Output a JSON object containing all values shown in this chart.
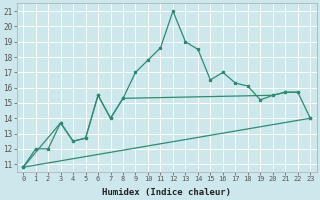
{
  "main_x": [
    0,
    1,
    2,
    3,
    4,
    5,
    6,
    7,
    8,
    9,
    10,
    11,
    12,
    13,
    14,
    15,
    16,
    17,
    18,
    19,
    20,
    21,
    22
  ],
  "main_y": [
    10.8,
    12.0,
    12.0,
    13.7,
    12.5,
    12.7,
    15.5,
    14.0,
    15.3,
    17.0,
    17.8,
    18.6,
    21.0,
    19.0,
    18.5,
    16.5,
    17.0,
    16.3,
    16.1,
    15.2,
    15.5,
    15.7,
    15.7
  ],
  "line2_x": [
    0,
    3,
    4,
    5,
    6,
    7,
    8,
    20,
    21,
    22,
    23
  ],
  "line2_y": [
    10.8,
    13.7,
    12.5,
    12.7,
    15.5,
    14.0,
    15.3,
    15.5,
    15.7,
    15.7,
    14.0
  ],
  "line3_x": [
    0,
    23
  ],
  "line3_y": [
    10.8,
    14.0
  ],
  "line_color": "#2e8b72",
  "bg_color": "#cde8ec",
  "grid_color": "#b0d4d8",
  "xlabel": "Humidex (Indice chaleur)",
  "yticks": [
    11,
    12,
    13,
    14,
    15,
    16,
    17,
    18,
    19,
    20,
    21
  ],
  "xticks": [
    0,
    1,
    2,
    3,
    4,
    5,
    6,
    7,
    8,
    9,
    10,
    11,
    12,
    13,
    14,
    15,
    16,
    17,
    18,
    19,
    20,
    21,
    22,
    23
  ],
  "xlim": [
    -0.5,
    23.5
  ],
  "ylim": [
    10.5,
    21.5
  ]
}
